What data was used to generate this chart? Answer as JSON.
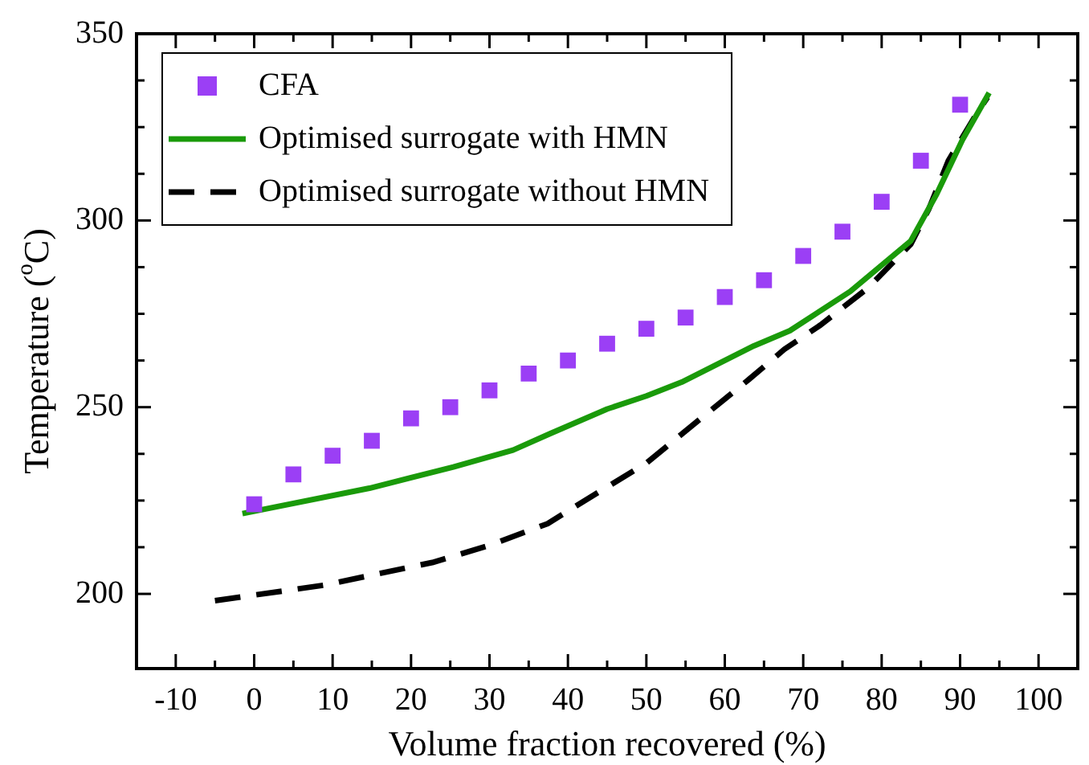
{
  "chart_data": {
    "type": "line",
    "xlabel": "Volume fraction recovered (%)",
    "ylabel": "Temperature ($^{o}$C)",
    "xlim": [
      -15,
      105
    ],
    "xticks": [
      -10,
      0,
      10,
      20,
      30,
      40,
      50,
      60,
      70,
      80,
      90,
      100
    ],
    "ylim": [
      180,
      350
    ],
    "yticks": [
      200,
      250,
      300,
      350
    ],
    "grid": false,
    "legend": "top left",
    "series": [
      {
        "name": "CFA",
        "type": "scatter",
        "marker": "square",
        "color": "#9b3ff5",
        "x": [
          0,
          5,
          10,
          15,
          20,
          25,
          30,
          35,
          40,
          45,
          50,
          55,
          60,
          65,
          70,
          75,
          80,
          85,
          90
        ],
        "values": [
          224,
          232,
          237,
          241,
          247,
          250,
          254.5,
          259,
          262.5,
          267,
          271,
          274,
          279.5,
          284,
          290.5,
          297,
          305,
          316,
          331
        ]
      },
      {
        "name": "Optimised surrogate with HMN",
        "type": "line",
        "marker": "none",
        "line_style": "solid",
        "color": "#1a9a0a",
        "x": [
          -1.5,
          14.7,
          25.4,
          33,
          37.7,
          45,
          50,
          54.5,
          63.7,
          68.3,
          76,
          83.7,
          87,
          90.3,
          93.7
        ],
        "values": [
          221.5,
          228.3,
          234,
          238.5,
          242.9,
          249.5,
          253,
          256.7,
          266.4,
          270.5,
          281,
          294.5,
          307,
          321.6,
          334.2
        ]
      },
      {
        "name": "Optimised surrogate without HMN",
        "type": "line",
        "marker": "none",
        "line_style": "dashed",
        "color": "#000000",
        "x": [
          -5,
          8.8,
          22.7,
          30,
          37.4,
          43.4,
          50,
          57.6,
          63,
          67.6,
          72.2,
          78.3,
          83.7,
          86,
          88.5,
          92,
          93.5
        ],
        "values": [
          198.2,
          202.3,
          208.4,
          213,
          218.8,
          226.6,
          235,
          248.1,
          257.3,
          265.5,
          272,
          282,
          293.6,
          303,
          316,
          328.2,
          333
        ]
      }
    ]
  }
}
